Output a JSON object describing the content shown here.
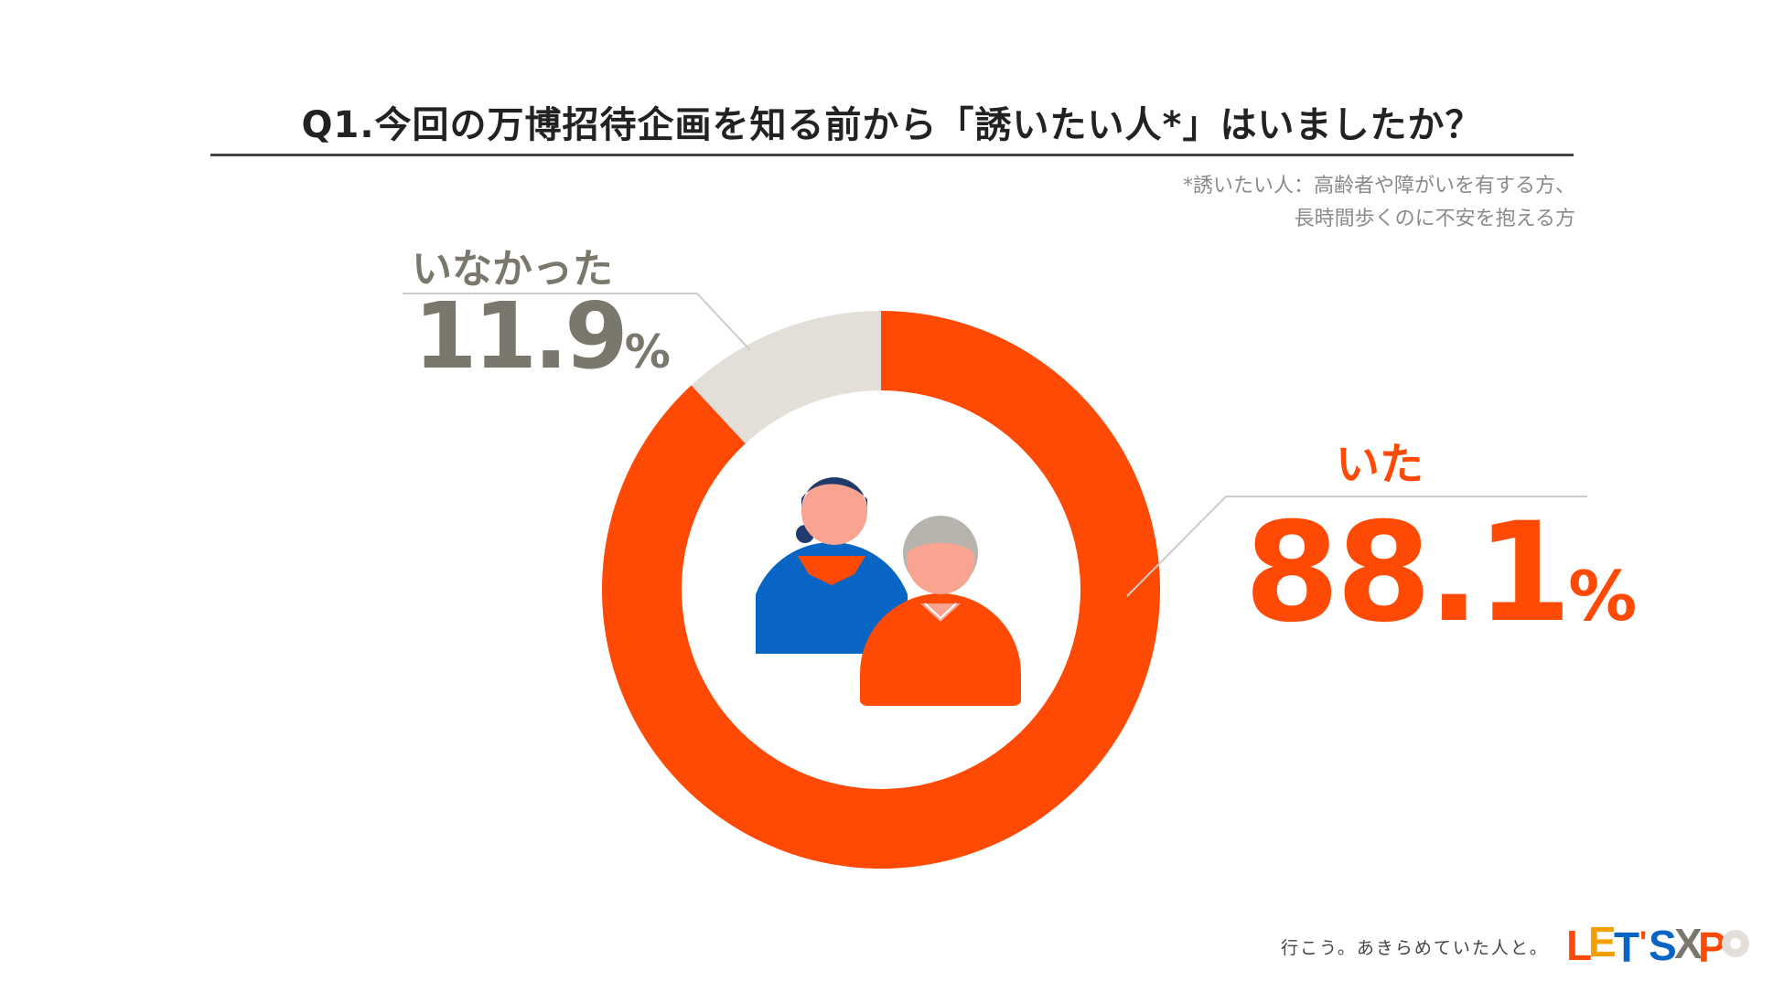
{
  "chart_data": {
    "type": "pie",
    "title": "Q1.今回の万博招待企画を知る前から「誘いたい人*」はいましたか？",
    "footnote": [
      "*誘いたい人：高齢者や障がいを有する方、",
      "長時間歩くのに不安を抱える方"
    ],
    "categories": [
      "いた",
      "いなかった"
    ],
    "values": [
      88.1,
      11.9
    ],
    "value_labels": [
      "88.1",
      "11.9"
    ],
    "unit": "%",
    "colors": [
      "#ff4a05",
      "#e3dfd8"
    ],
    "label_colors": [
      "#ff4a05",
      "#7a776c"
    ],
    "donut": true,
    "start_angle": "12 o'clock",
    "direction": "clockwise"
  },
  "icon": "two-people-icon",
  "footer": {
    "tagline": "行こう。あきらめていた人と。",
    "logo_text": "LET'S EXPO",
    "logo_icon": "lets-expo-logo"
  }
}
